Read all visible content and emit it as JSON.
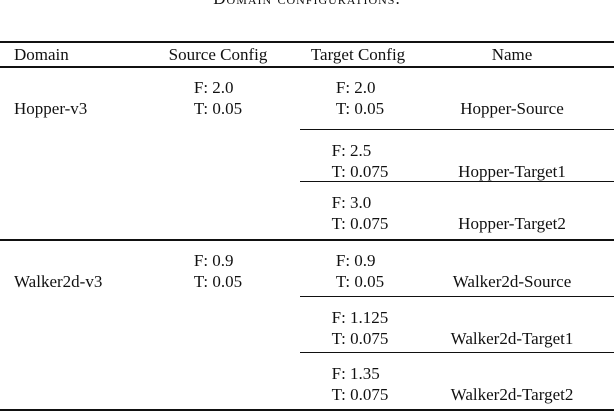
{
  "caption": "Domain configurations.",
  "headers": [
    "Domain",
    "Source Config",
    "Target Config",
    "Name"
  ],
  "groups": [
    {
      "domain": "Hopper-v3",
      "source": [
        "F: 2.0",
        "T: 0.05"
      ],
      "rows": [
        {
          "target": [
            "F: 2.0",
            "T: 0.05"
          ],
          "name": "Hopper-Source"
        },
        {
          "target": [
            "F: 2.5",
            "T: 0.075"
          ],
          "name": "Hopper-Target1"
        },
        {
          "target": [
            "F: 3.0",
            "T: 0.075"
          ],
          "name": "Hopper-Target2"
        }
      ]
    },
    {
      "domain": "Walker2d-v3",
      "source": [
        "F: 0.9",
        "T: 0.05"
      ],
      "rows": [
        {
          "target": [
            "F: 0.9",
            "T: 0.05"
          ],
          "name": "Walker2d-Source"
        },
        {
          "target": [
            "F: 1.125",
            "T: 0.075"
          ],
          "name": "Walker2d-Target1"
        },
        {
          "target": [
            "F: 1.35",
            "T: 0.075"
          ],
          "name": "Walker2d-Target2"
        }
      ]
    }
  ]
}
